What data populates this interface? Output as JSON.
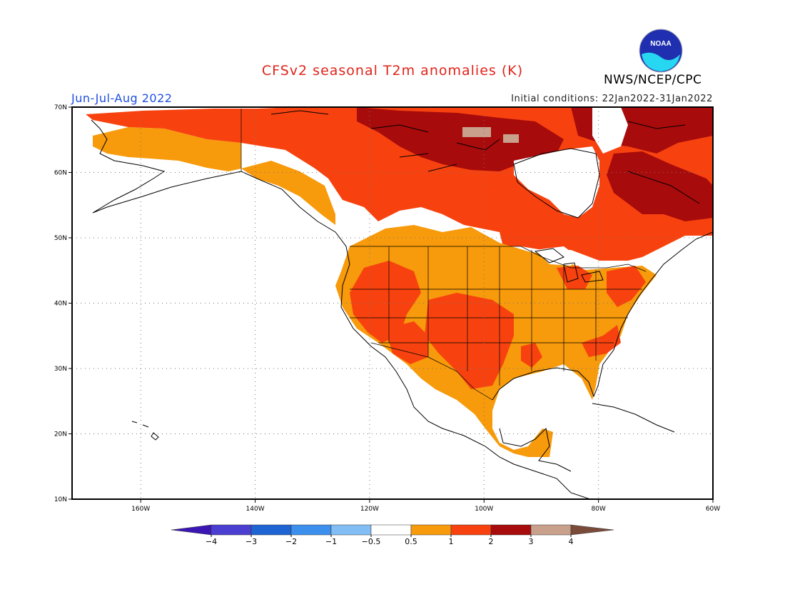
{
  "title": "CFSv2 seasonal T2m anomalies (K)",
  "period": "Jun-Jul-Aug 2022",
  "initial_conditions": "Initial conditions: 22Jan2022-31Jan2022",
  "agency": "NWS/NCEP/CPC",
  "logo_text": "NOAA",
  "colors": {
    "title": "#e0241b",
    "period": "#1f4fe0",
    "ocean": "#ffffff",
    "coast": "#000000"
  },
  "map": {
    "lon_range": [
      -172,
      -60
    ],
    "lat_range": [
      10,
      70
    ],
    "lon_ticks": [
      {
        "value": -160,
        "label": "160W"
      },
      {
        "value": -140,
        "label": "140W"
      },
      {
        "value": -120,
        "label": "120W"
      },
      {
        "value": -100,
        "label": "100W"
      },
      {
        "value": -80,
        "label": "80W"
      },
      {
        "value": -60,
        "label": "60W"
      }
    ],
    "lat_ticks": [
      {
        "value": 10,
        "label": "10N"
      },
      {
        "value": 20,
        "label": "20N"
      },
      {
        "value": 30,
        "label": "30N"
      },
      {
        "value": 40,
        "label": "40N"
      },
      {
        "value": 50,
        "label": "50N"
      },
      {
        "value": 60,
        "label": "60N"
      },
      {
        "value": 70,
        "label": "70N"
      }
    ],
    "grid": "dotted"
  },
  "colorbar": {
    "bins": [
      {
        "color": "#3c16b4",
        "range": "< -4"
      },
      {
        "color": "#4a3fd0",
        "range": "-4 to -3"
      },
      {
        "color": "#1e64d2",
        "range": "-3 to -2"
      },
      {
        "color": "#3c8fec",
        "range": "-2 to -1"
      },
      {
        "color": "#82bef3",
        "range": "-1 to -0.5"
      },
      {
        "color": "#ffffff",
        "range": "-0.5 to 0.5"
      },
      {
        "color": "#f79a0b",
        "range": "0.5 to 1"
      },
      {
        "color": "#f7420f",
        "range": "1 to 2"
      },
      {
        "color": "#a80b0b",
        "range": "2 to 3"
      },
      {
        "color": "#c8a08c",
        "range": "3 to 4"
      },
      {
        "color": "#7b4b3a",
        "range": "> 4"
      }
    ],
    "labels": [
      "−4",
      "−3",
      "−2",
      "−1",
      "−0.5",
      "0.5",
      "1",
      "2",
      "3",
      "4"
    ]
  },
  "anomaly_regions": [
    {
      "level": "1 to 2",
      "color": "#f7420f",
      "region": "Alaska North Slope / Canadian Arctic coast"
    },
    {
      "level": "0.5 to 1",
      "color": "#f79a0b",
      "region": "Alaska interior and Southeast Alaska"
    },
    {
      "level": "2 to 3",
      "color": "#a80b0b",
      "region": "Canadian Arctic Archipelago / Nunavut"
    },
    {
      "level": "3 to 4",
      "color": "#c8a08c",
      "region": "Central Canadian Arctic"
    },
    {
      "level": "1 to 2",
      "color": "#f7420f",
      "region": "Central and Eastern Canada"
    },
    {
      "level": "2 to 3",
      "color": "#a80b0b",
      "region": "Northern Quebec / Labrador"
    },
    {
      "level": "0.5 to 1",
      "color": "#f79a0b",
      "region": "Contiguous United States and northern Mexico"
    },
    {
      "level": "1 to 2",
      "color": "#f7420f",
      "region": "Great Basin, Southern Plains, Texas"
    },
    {
      "level": "0.5 to 1",
      "color": "#f79a0b",
      "region": "Western Mexico and Yucatan"
    }
  ]
}
